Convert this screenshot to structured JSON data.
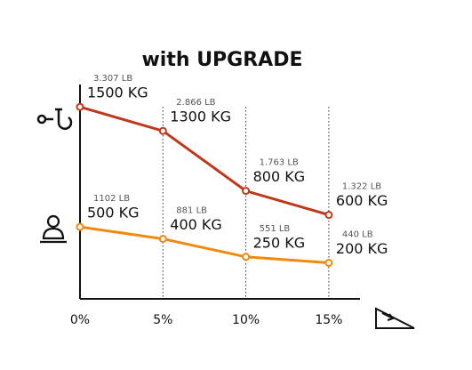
{
  "chart_data": {
    "type": "line",
    "title": "with UPGRADE",
    "categories": [
      "0%",
      "5%",
      "10%",
      "15%"
    ],
    "series": [
      {
        "color": "#c0381b",
        "values": [
          1500,
          1300,
          800,
          600
        ],
        "value_labels": [
          "1500 KG",
          "1300 KG",
          "800 KG",
          "600 KG"
        ],
        "lb_labels": [
          "3.307 LB",
          "2.866 LB",
          "1.763 LB",
          "1.322 LB"
        ]
      },
      {
        "color": "#f0890f",
        "values": [
          500,
          400,
          250,
          200
        ],
        "value_labels": [
          "500 KG",
          "400 KG",
          "250 KG",
          "200 KG"
        ],
        "lb_labels": [
          "1102 LB",
          "881 LB",
          "551 LB",
          "440 LB"
        ]
      }
    ],
    "ylim": [
      -100,
      1650
    ]
  }
}
